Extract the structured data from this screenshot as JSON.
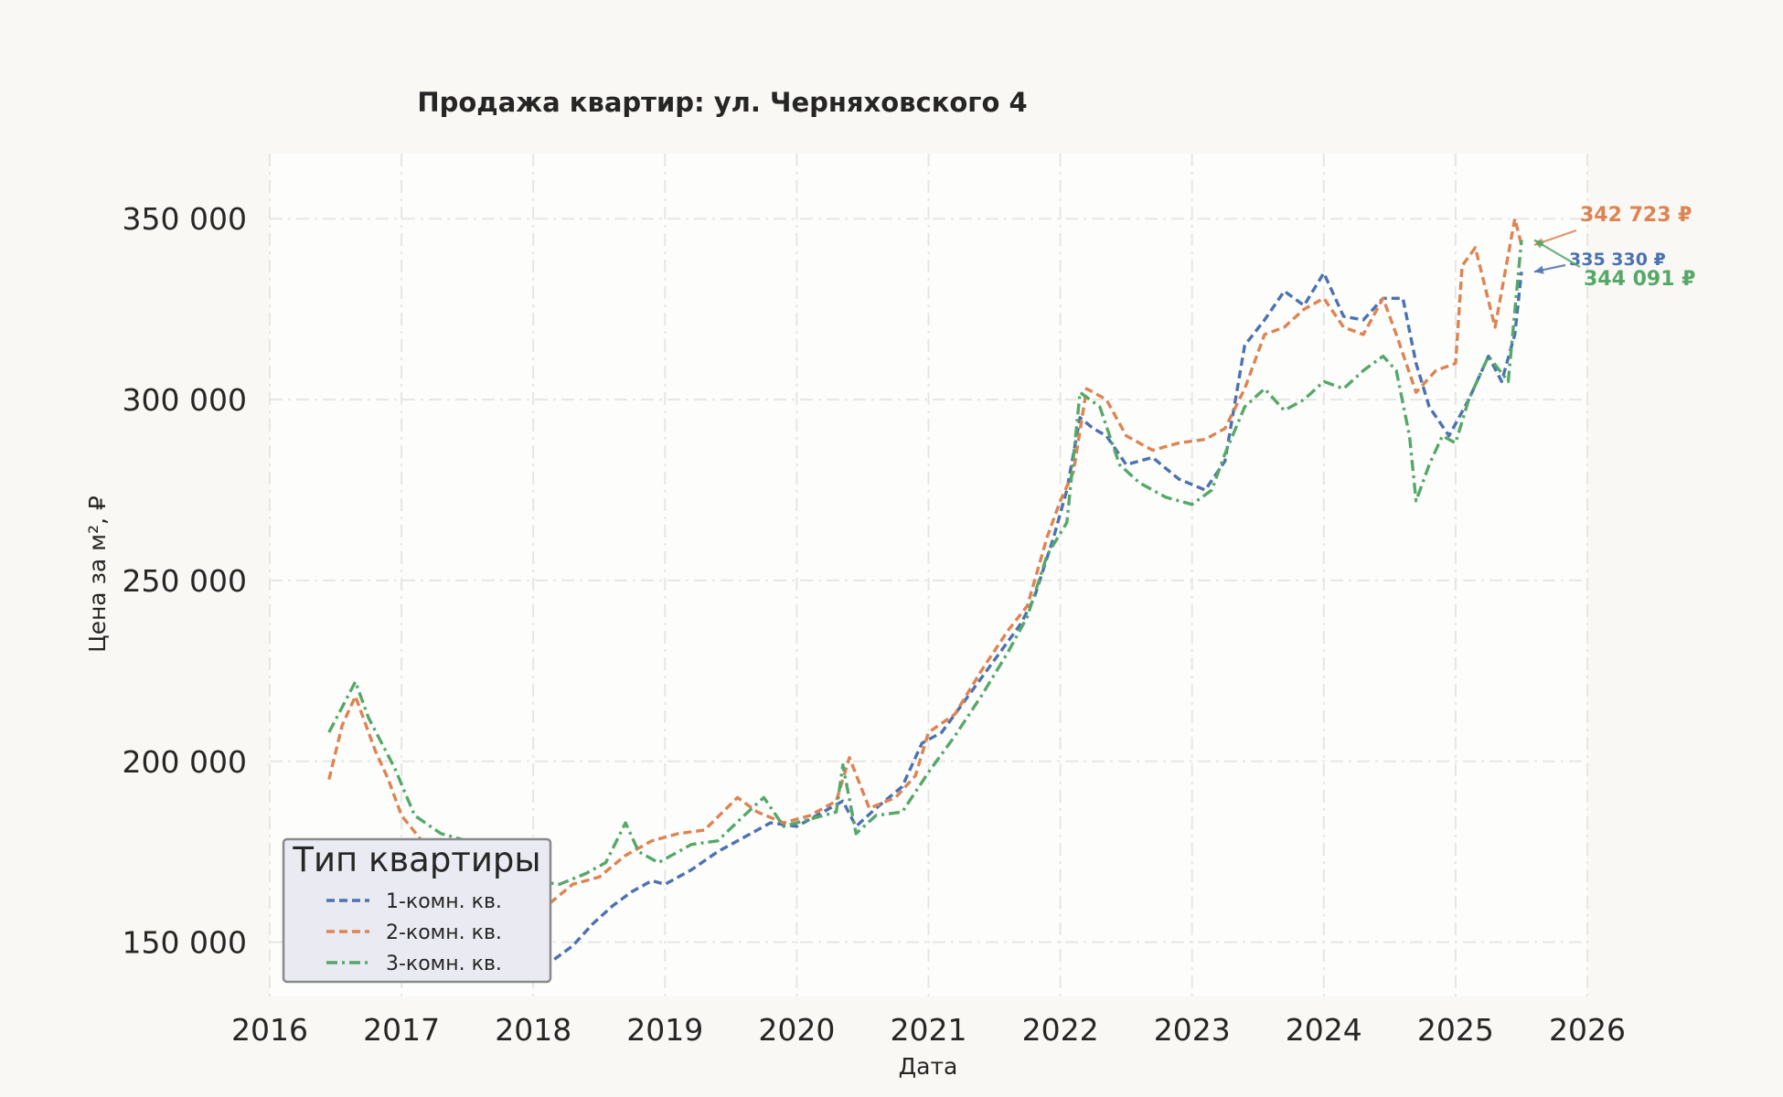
{
  "chart_data": {
    "type": "line",
    "title": "Продажа квартир: ул. Черняховского 4",
    "xlabel": "Дата",
    "ylabel": "Цена за м², ₽",
    "xlim": [
      2016.0,
      2026.0
    ],
    "ylim": [
      135000,
      368000
    ],
    "x_ticks": [
      2016,
      2017,
      2018,
      2019,
      2020,
      2021,
      2022,
      2023,
      2024,
      2025,
      2026
    ],
    "x_tick_labels": [
      "2016",
      "2017",
      "2018",
      "2019",
      "2020",
      "2021",
      "2022",
      "2023",
      "2024",
      "2025",
      "2026"
    ],
    "y_ticks": [
      150000,
      200000,
      250000,
      300000,
      350000
    ],
    "y_tick_labels": [
      "150 000",
      "200 000",
      "250 000",
      "300 000",
      "350 000"
    ],
    "grid": true,
    "legend": {
      "title": "Тип квартиры",
      "position": "lower-left"
    },
    "colors": {
      "one_room": "#4c72b0",
      "two_room": "#dd8452",
      "three_room": "#55a868"
    },
    "series": [
      {
        "name": "1-комн. кв.",
        "color": "#4c72b0",
        "dash": "dashed",
        "x": [
          2016.55,
          2016.75,
          2017.0,
          2017.3,
          2017.6,
          2017.85,
          2018.0,
          2018.15,
          2018.3,
          2018.45,
          2018.6,
          2018.75,
          2018.9,
          2019.0,
          2019.2,
          2019.4,
          2019.6,
          2019.8,
          2020.0,
          2020.2,
          2020.35,
          2020.45,
          2020.6,
          2020.8,
          2020.95,
          2021.1,
          2021.3,
          2021.5,
          2021.7,
          2021.8,
          2021.95,
          2022.05,
          2022.15,
          2022.25,
          2022.35,
          2022.5,
          2022.7,
          2022.9,
          2023.1,
          2023.25,
          2023.4,
          2023.55,
          2023.7,
          2023.85,
          2024.0,
          2024.15,
          2024.3,
          2024.45,
          2024.6,
          2024.7,
          2024.8,
          2024.95,
          2025.1,
          2025.25,
          2025.35,
          2025.45,
          2025.5
        ],
        "y": [
          167000,
          165000,
          163000,
          162000,
          155000,
          150000,
          147000,
          145000,
          149000,
          155000,
          160000,
          164000,
          167000,
          166000,
          170000,
          175000,
          179000,
          183000,
          182000,
          186000,
          189000,
          182000,
          187000,
          193000,
          205000,
          208000,
          218000,
          228000,
          238000,
          245000,
          262000,
          275000,
          295000,
          292000,
          290000,
          282000,
          284000,
          278000,
          275000,
          283000,
          315000,
          322000,
          330000,
          326000,
          335000,
          323000,
          322000,
          328000,
          328000,
          310000,
          298000,
          290000,
          300000,
          312000,
          305000,
          318000,
          335330
        ]
      },
      {
        "name": "2-комн. кв.",
        "color": "#dd8452",
        "dash": "dashed",
        "x": [
          2016.45,
          2016.55,
          2016.65,
          2016.8,
          2016.9,
          2017.0,
          2017.2,
          2017.5,
          2017.75,
          2017.95,
          2018.1,
          2018.3,
          2018.5,
          2018.7,
          2018.9,
          2019.1,
          2019.3,
          2019.55,
          2019.7,
          2019.9,
          2020.1,
          2020.3,
          2020.4,
          2020.55,
          2020.75,
          2020.9,
          2021.0,
          2021.2,
          2021.4,
          2021.6,
          2021.75,
          2021.9,
          2022.0,
          2022.1,
          2022.2,
          2022.35,
          2022.5,
          2022.7,
          2022.9,
          2023.1,
          2023.25,
          2023.4,
          2023.55,
          2023.7,
          2023.85,
          2024.0,
          2024.15,
          2024.3,
          2024.45,
          2024.55,
          2024.7,
          2024.85,
          2025.0,
          2025.05,
          2025.15,
          2025.3,
          2025.45,
          2025.5
        ],
        "y": [
          195000,
          210000,
          218000,
          203000,
          195000,
          185000,
          176000,
          172000,
          170000,
          165000,
          160000,
          166000,
          168000,
          174000,
          178000,
          180000,
          181000,
          190000,
          186000,
          183000,
          185000,
          189000,
          201000,
          187000,
          190000,
          196000,
          208000,
          213000,
          225000,
          236000,
          243000,
          262000,
          272000,
          280000,
          303000,
          300000,
          290000,
          286000,
          288000,
          289000,
          292000,
          303000,
          318000,
          320000,
          325000,
          328000,
          320000,
          318000,
          328000,
          318000,
          302000,
          308000,
          310000,
          337000,
          342000,
          320000,
          350000,
          342723
        ]
      },
      {
        "name": "3-комн. кв.",
        "color": "#55a868",
        "dash": "dashdot",
        "x": [
          2016.45,
          2016.55,
          2016.65,
          2016.75,
          2016.85,
          2016.95,
          2017.1,
          2017.3,
          2017.5,
          2017.7,
          2017.9,
          2018.0,
          2018.2,
          2018.4,
          2018.55,
          2018.7,
          2018.8,
          2018.95,
          2019.2,
          2019.4,
          2019.6,
          2019.75,
          2019.9,
          2020.1,
          2020.3,
          2020.35,
          2020.45,
          2020.6,
          2020.8,
          2021.0,
          2021.2,
          2021.4,
          2021.6,
          2021.75,
          2021.9,
          2022.05,
          2022.15,
          2022.3,
          2022.45,
          2022.6,
          2022.8,
          2023.0,
          2023.15,
          2023.25,
          2023.4,
          2023.55,
          2023.7,
          2023.85,
          2024.0,
          2024.15,
          2024.3,
          2024.45,
          2024.55,
          2024.65,
          2024.7,
          2024.8,
          2024.9,
          2025.0,
          2025.1,
          2025.25,
          2025.4,
          2025.5
        ],
        "y": [
          208000,
          215000,
          222000,
          212000,
          205000,
          198000,
          185000,
          180000,
          178000,
          175000,
          170000,
          167000,
          166000,
          169000,
          172000,
          183000,
          175000,
          172000,
          177000,
          178000,
          185000,
          190000,
          182000,
          184000,
          186000,
          199000,
          180000,
          185000,
          186000,
          197000,
          207000,
          218000,
          230000,
          240000,
          257000,
          266000,
          302000,
          298000,
          282000,
          277000,
          273000,
          271000,
          275000,
          285000,
          298000,
          303000,
          297000,
          300000,
          305000,
          303000,
          308000,
          312000,
          308000,
          290000,
          272000,
          282000,
          290000,
          288000,
          300000,
          312000,
          305000,
          344091
        ]
      }
    ],
    "annotations": [
      {
        "text": "342 723 ₽",
        "series": "2-комн. кв.",
        "color": "#dd8452"
      },
      {
        "text": "335 330 ₽",
        "series": "1-комн. кв.",
        "color": "#4c72b0"
      },
      {
        "text": "344 091 ₽",
        "series": "3-комн. кв.",
        "color": "#55a868"
      }
    ]
  }
}
